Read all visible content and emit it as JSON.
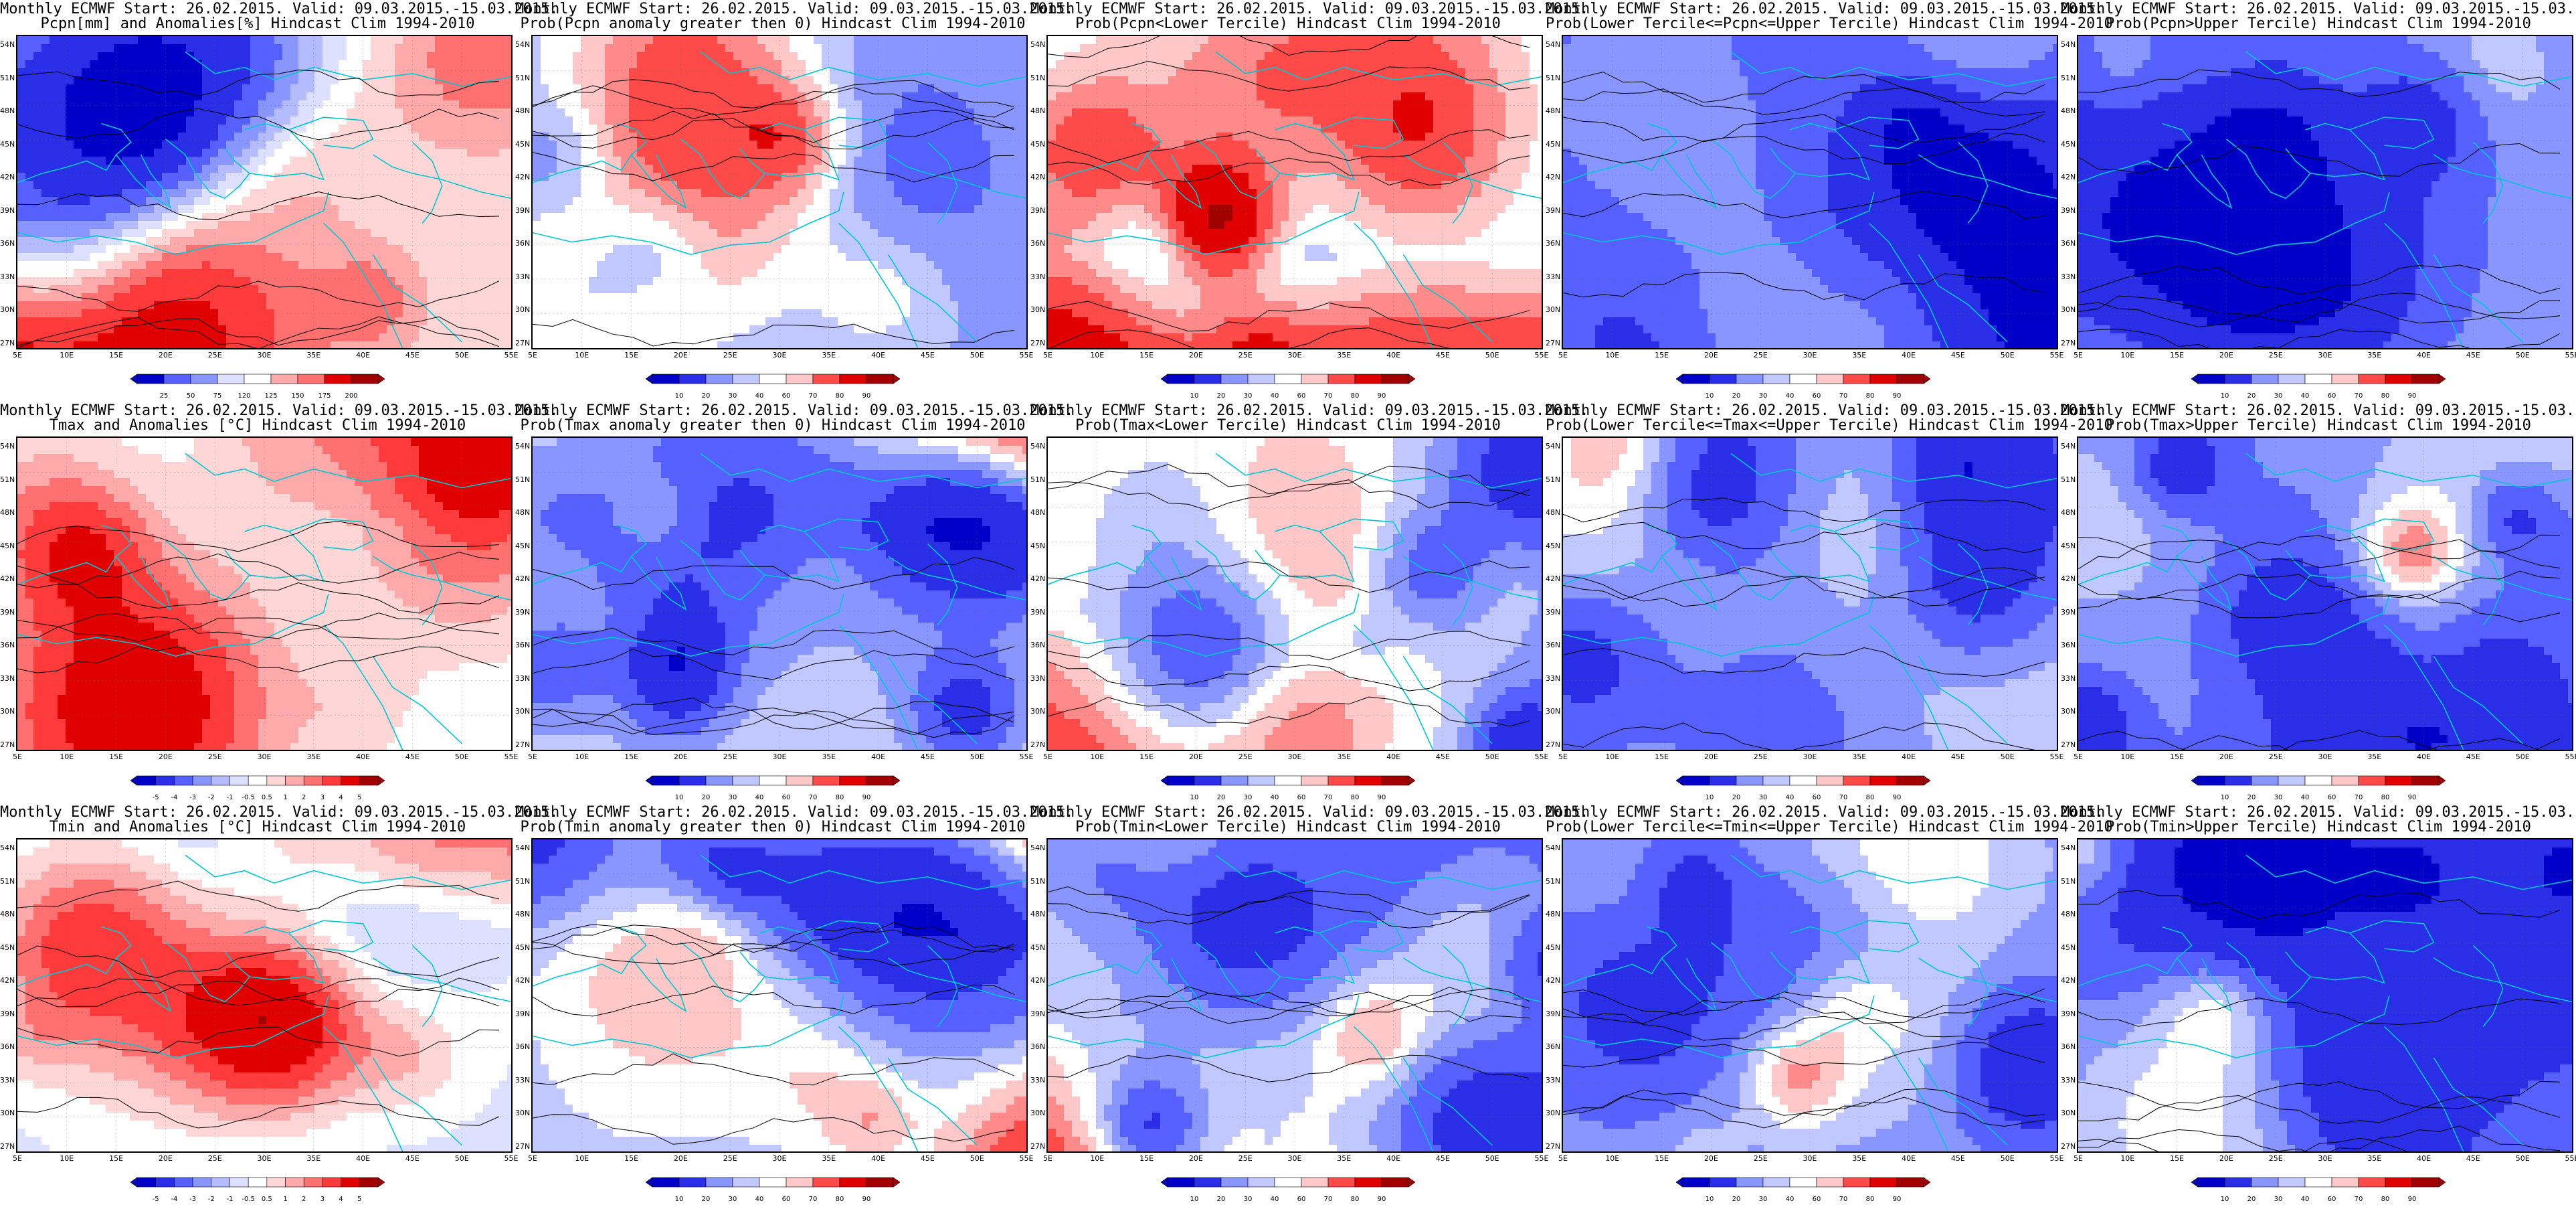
{
  "header_prefix": "Monthly ECMWF Start: 26.02.2015. Valid: 09.03.2015.-15.03.2015.",
  "lat_labels": [
    "54N",
    "51N",
    "48N",
    "45N",
    "42N",
    "39N",
    "36N",
    "33N",
    "30N",
    "27N"
  ],
  "lon_labels": [
    "5E",
    "10E",
    "15E",
    "20E",
    "25E",
    "30E",
    "35E",
    "40E",
    "45E",
    "50E",
    "55E"
  ],
  "colors": {
    "prob_scale": [
      "#0000c8",
      "#2a2ee6",
      "#5560ff",
      "#8a96ff",
      "#c0c8ff",
      "#ffffff",
      "#ffc8c8",
      "#ff8a8a",
      "#ff4a4a",
      "#e00000",
      "#a00000"
    ],
    "anom_scale": [
      "#0000c8",
      "#2a2ee6",
      "#5560ff",
      "#8a96ff",
      "#b4bcff",
      "#dde0ff",
      "#ffffff",
      "#ffd6d6",
      "#ffaaaa",
      "#ff7070",
      "#ff3a3a",
      "#e00000",
      "#a00000"
    ],
    "coast": "#00c8d2",
    "contour": "#000000"
  },
  "colorbar_ticks": {
    "pcpn_anom": [
      "25",
      "50",
      "75",
      "120",
      "125",
      "150",
      "175",
      "200"
    ],
    "temp_anom": [
      "-5",
      "-4",
      "-3",
      "-2",
      "-1",
      "-0.5",
      "0.5",
      "1",
      "2",
      "3",
      "4",
      "5"
    ],
    "prob": [
      "10",
      "20",
      "30",
      "40",
      "60",
      "70",
      "80",
      "90"
    ]
  },
  "panels": [
    {
      "title": "Pcpn[mm] and Anomalies[%] Hindcast Clim 1994-2010",
      "bar": "pcpn_anom",
      "scale": "anom_scale",
      "seed": 11,
      "bias": 0.15,
      "west": 0.9
    },
    {
      "title": "Prob(Pcpn anomaly greater then 0) Hindcast Clim 1994-2010",
      "bar": "prob",
      "scale": "prob_scale",
      "seed": 23,
      "bias": -0.35,
      "west": 0.2
    },
    {
      "title": "Prob(Pcpn<Lower Tercile) Hindcast Clim 1994-2010",
      "bar": "prob",
      "scale": "prob_scale",
      "seed": 37,
      "bias": -0.05,
      "south": 1.0
    },
    {
      "title": "Prob(Lower Tercile<=Pcpn<=Upper Tercile) Hindcast Clim 1994-2010",
      "bar": "prob",
      "scale": "prob_scale",
      "seed": 41,
      "bias": -0.55
    },
    {
      "title": "Prob(Pcpn>Upper Tercile) Hindcast Clim 1994-2010",
      "bar": "prob",
      "scale": "prob_scale",
      "seed": 53,
      "bias": -0.4,
      "west": 0.15
    },
    {
      "title": "Tmax and Anomalies [°C] Hindcast Clim 1994-2010",
      "bar": "temp_anom",
      "scale": "anom_scale",
      "seed": 61,
      "bias": -0.1,
      "north": 0.9
    },
    {
      "title": "Prob(Tmax anomaly greater then 0) Hindcast Clim 1994-2010",
      "bar": "prob",
      "scale": "prob_scale",
      "seed": 67,
      "bias": -0.15,
      "north": 1.1
    },
    {
      "title": "Prob(Tmax<Lower Tercile) Hindcast Clim 1994-2010",
      "bar": "prob",
      "scale": "prob_scale",
      "seed": 71,
      "bias": 0.05,
      "west": 0.7,
      "east": -0.9
    },
    {
      "title": "Prob(Lower Tercile<=Tmax<=Upper Tercile) Hindcast Clim 1994-2010",
      "bar": "prob",
      "scale": "prob_scale",
      "seed": 79,
      "bias": -0.35
    },
    {
      "title": "Prob(Tmax>Upper Tercile) Hindcast Clim 1994-2010",
      "bar": "prob",
      "scale": "prob_scale",
      "seed": 83,
      "bias": -0.55,
      "north": 0.4
    },
    {
      "title": "Tmin and Anomalies [°C] Hindcast Clim 1994-2010",
      "bar": "temp_anom",
      "scale": "anom_scale",
      "seed": 89,
      "bias": -0.15,
      "north": 0.7
    },
    {
      "title": "Prob(Tmin anomaly greater then 0) Hindcast Clim 1994-2010",
      "bar": "prob",
      "scale": "prob_scale",
      "seed": 97,
      "bias": -0.3,
      "north": 1.1,
      "southeast": 1.0
    },
    {
      "title": "Prob(Tmin<Lower Tercile) Hindcast Clim 1994-2010",
      "bar": "prob",
      "scale": "prob_scale",
      "seed": 101,
      "bias": 0.0,
      "west": 0.8,
      "east": -1.0
    },
    {
      "title": "Prob(Lower Tercile<=Tmin<=Upper Tercile) Hindcast Clim 1994-2010",
      "bar": "prob",
      "scale": "prob_scale",
      "seed": 107,
      "bias": -0.4
    },
    {
      "title": "Prob(Tmin>Upper Tercile) Hindcast Clim 1994-2010",
      "bar": "prob",
      "scale": "prob_scale",
      "seed": 113,
      "bias": -0.65
    }
  ]
}
